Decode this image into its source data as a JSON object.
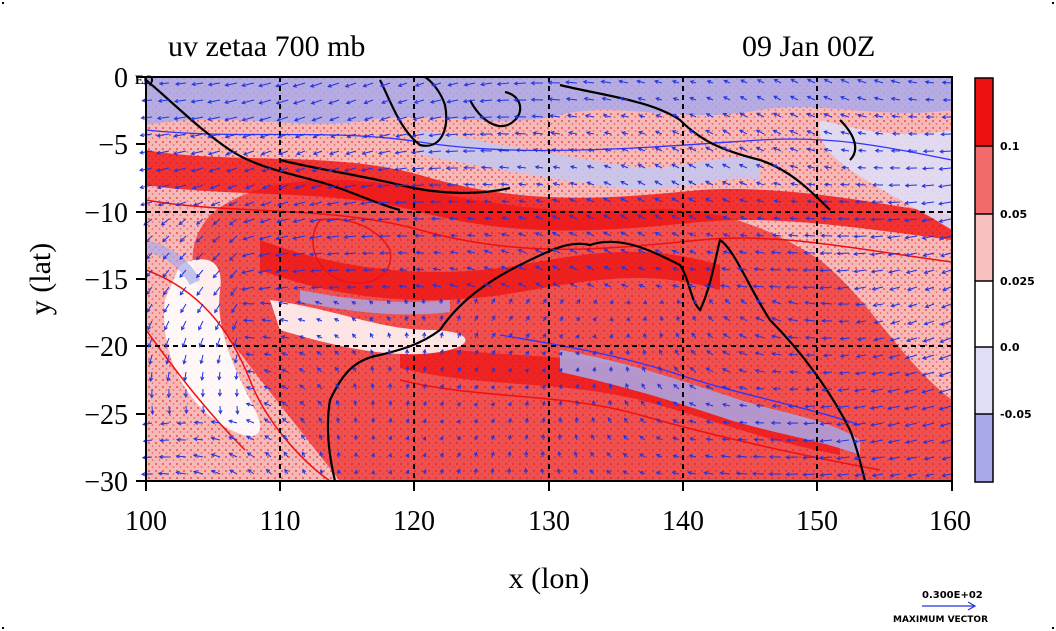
{
  "title": "uv zetaa 700 mb",
  "time": "09 Jan 00Z",
  "axes": {
    "xlabel": "x (lon)",
    "ylabel": "y (lat)",
    "x_ticks": [
      "100",
      "110",
      "120",
      "130",
      "140",
      "150",
      "160"
    ],
    "y_ticks": [
      "0",
      "−5",
      "−10",
      "−15",
      "−20",
      "−25",
      "−30"
    ],
    "eq_label": "EQ"
  },
  "colorbar": {
    "labels": [
      "0.1",
      "0.05",
      "0.025",
      "0.0",
      "-0.05"
    ],
    "colors": [
      "#ee1111",
      "#f26a6a",
      "#f9c0c0",
      "#ffffff",
      "#dedef7",
      "#a9a9ea"
    ]
  },
  "vector_key": {
    "value": "0.300E+02",
    "label": "MAXIMUM VECTOR"
  },
  "chart_data": {
    "type": "heatmap",
    "title": "uv zetaa 700 mb",
    "xlabel": "x (lon)",
    "ylabel": "y (lat)",
    "xlim": [
      100,
      160
    ],
    "ylim": [
      -30,
      0
    ],
    "x_ticks": [
      100,
      110,
      120,
      130,
      140,
      150,
      160
    ],
    "y_ticks": [
      0,
      -5,
      -10,
      -15,
      -20,
      -25,
      -30
    ],
    "grid": true,
    "levels": [
      -0.05,
      0.0,
      0.025,
      0.05,
      0.1
    ],
    "shading_colors": [
      "#a9a9ea",
      "#dedef7",
      "#ffffff",
      "#f9c0c0",
      "#f26a6a",
      "#ee1111"
    ],
    "vector_max": 30
  }
}
